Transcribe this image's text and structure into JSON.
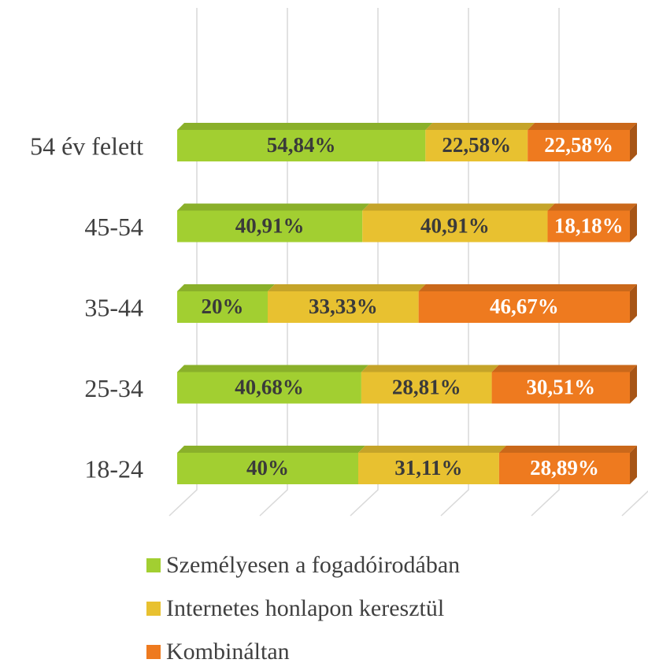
{
  "chart_data": {
    "type": "stacked-bar-3d",
    "categories": [
      "54 év felett",
      "45-54",
      "35-44",
      "25-34",
      "18-24"
    ],
    "series": [
      {
        "name": "Személyesen a fogadóirodában",
        "color": "#a2cf31",
        "values": [
          54.84,
          40.91,
          20,
          40.68,
          40
        ],
        "value_labels": [
          "54,84%",
          "40,91%",
          "20%",
          "40,68%",
          "40%"
        ]
      },
      {
        "name": "Internetes honlapon keresztül",
        "color": "#e8c130",
        "values": [
          22.58,
          40.91,
          33.33,
          28.81,
          31.11
        ],
        "value_labels": [
          "22,58%",
          "40,91%",
          "33,33%",
          "28,81%",
          "31,11%"
        ]
      },
      {
        "name": "Kombináltan",
        "color": "#ee7a1f",
        "values": [
          22.58,
          18.18,
          46.67,
          30.51,
          28.89
        ],
        "value_labels": [
          "22,58%",
          "18,18%",
          "46,67%",
          "30,51%",
          "28,89%"
        ]
      }
    ],
    "xlim": [
      0,
      100
    ],
    "xticks": [
      0,
      20,
      40,
      60,
      80,
      100
    ],
    "grid": true
  }
}
